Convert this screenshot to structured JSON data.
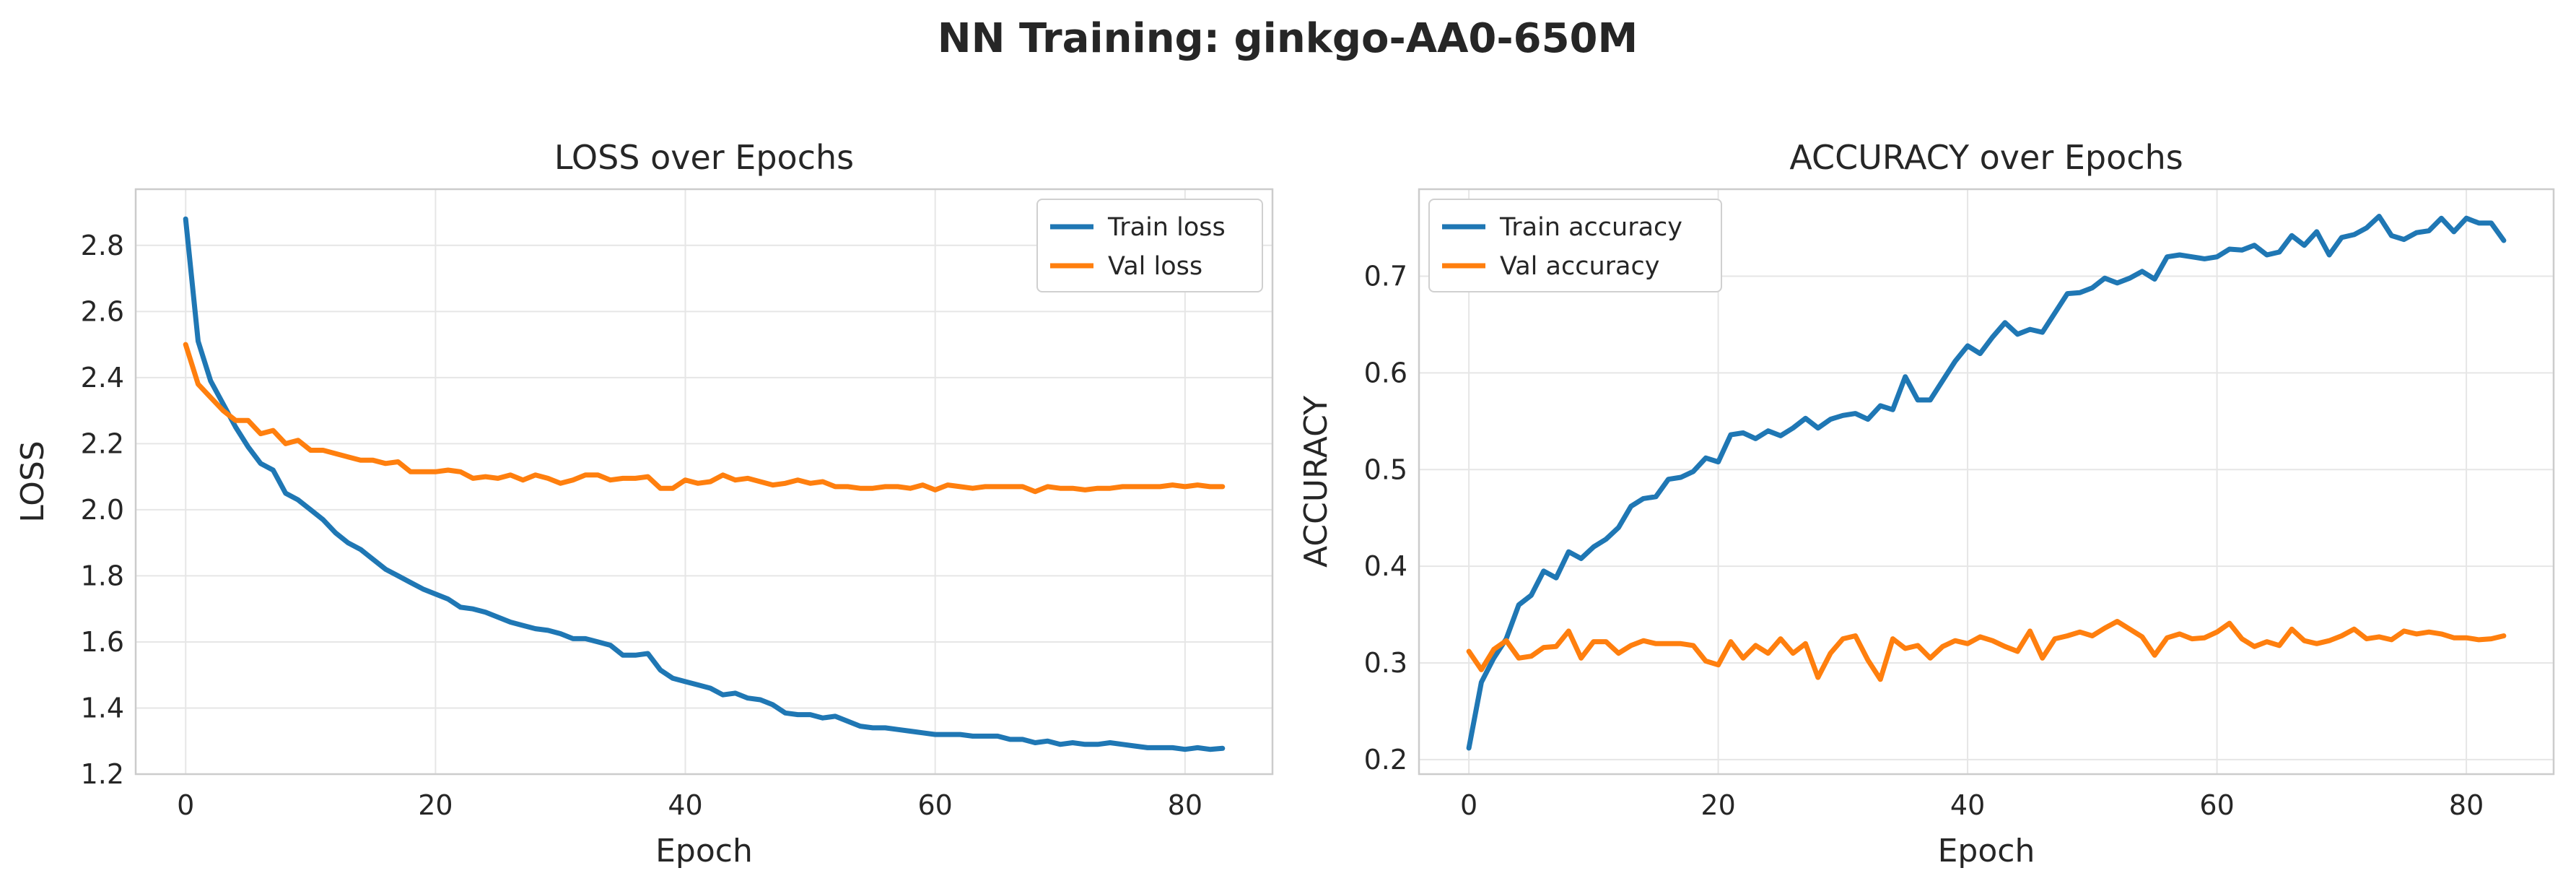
{
  "title": "NN Training: ginkgo-AA0-650M",
  "colors": {
    "train": "#1f77b4",
    "val": "#ff7f0e"
  },
  "chart_data": [
    {
      "type": "line",
      "title": "LOSS over Epochs",
      "xlabel": "Epoch",
      "ylabel": "LOSS",
      "xlim": [
        -4,
        87
      ],
      "ylim": [
        1.2,
        2.97
      ],
      "xticks": [
        0,
        20,
        40,
        60,
        80
      ],
      "yticks": [
        1.2,
        1.4,
        1.6,
        1.8,
        2.0,
        2.2,
        2.4,
        2.6,
        2.8
      ],
      "grid": true,
      "legend_position": "top-right",
      "x": [
        0,
        1,
        2,
        3,
        4,
        5,
        6,
        7,
        8,
        9,
        10,
        11,
        12,
        13,
        14,
        15,
        16,
        17,
        18,
        19,
        20,
        21,
        22,
        23,
        24,
        25,
        26,
        27,
        28,
        29,
        30,
        31,
        32,
        33,
        34,
        35,
        36,
        37,
        38,
        39,
        40,
        41,
        42,
        43,
        44,
        45,
        46,
        47,
        48,
        49,
        50,
        51,
        52,
        53,
        54,
        55,
        56,
        57,
        58,
        59,
        60,
        61,
        62,
        63,
        64,
        65,
        66,
        67,
        68,
        69,
        70,
        71,
        72,
        73,
        74,
        75,
        76,
        77,
        78,
        79,
        80,
        81,
        82,
        83
      ],
      "series": [
        {
          "name": "Train loss",
          "color": "#1f77b4",
          "values": [
            2.88,
            2.51,
            2.39,
            2.32,
            2.25,
            2.19,
            2.14,
            2.12,
            2.05,
            2.03,
            2.0,
            1.97,
            1.93,
            1.9,
            1.88,
            1.85,
            1.82,
            1.8,
            1.78,
            1.76,
            1.745,
            1.73,
            1.705,
            1.7,
            1.69,
            1.675,
            1.66,
            1.65,
            1.64,
            1.635,
            1.625,
            1.61,
            1.61,
            1.6,
            1.59,
            1.56,
            1.56,
            1.565,
            1.515,
            1.49,
            1.48,
            1.47,
            1.46,
            1.44,
            1.445,
            1.43,
            1.425,
            1.41,
            1.385,
            1.38,
            1.38,
            1.37,
            1.375,
            1.36,
            1.345,
            1.34,
            1.34,
            1.335,
            1.33,
            1.325,
            1.32,
            1.32,
            1.32,
            1.315,
            1.315,
            1.315,
            1.305,
            1.305,
            1.295,
            1.3,
            1.29,
            1.295,
            1.29,
            1.29,
            1.295,
            1.29,
            1.285,
            1.28,
            1.28,
            1.28,
            1.275,
            1.28,
            1.275,
            1.278
          ]
        },
        {
          "name": "Val loss",
          "color": "#ff7f0e",
          "values": [
            2.5,
            2.38,
            2.34,
            2.3,
            2.27,
            2.27,
            2.23,
            2.24,
            2.2,
            2.21,
            2.18,
            2.18,
            2.17,
            2.16,
            2.15,
            2.15,
            2.14,
            2.145,
            2.115,
            2.115,
            2.115,
            2.12,
            2.115,
            2.095,
            2.1,
            2.095,
            2.105,
            2.09,
            2.105,
            2.095,
            2.08,
            2.09,
            2.105,
            2.105,
            2.09,
            2.095,
            2.095,
            2.1,
            2.065,
            2.065,
            2.09,
            2.08,
            2.085,
            2.105,
            2.09,
            2.095,
            2.085,
            2.075,
            2.08,
            2.09,
            2.08,
            2.085,
            2.07,
            2.07,
            2.065,
            2.065,
            2.07,
            2.07,
            2.065,
            2.075,
            2.06,
            2.075,
            2.07,
            2.065,
            2.07,
            2.07,
            2.07,
            2.07,
            2.055,
            2.07,
            2.065,
            2.065,
            2.06,
            2.065,
            2.065,
            2.07,
            2.07,
            2.07,
            2.07,
            2.075,
            2.07,
            2.075,
            2.07,
            2.07
          ]
        }
      ]
    },
    {
      "type": "line",
      "title": "ACCURACY over Epochs",
      "xlabel": "Epoch",
      "ylabel": "ACCURACY",
      "xlim": [
        -4,
        87
      ],
      "ylim": [
        0.185,
        0.79
      ],
      "xticks": [
        0,
        20,
        40,
        60,
        80
      ],
      "yticks": [
        0.2,
        0.3,
        0.4,
        0.5,
        0.6,
        0.7
      ],
      "grid": true,
      "legend_position": "top-left",
      "x": [
        0,
        1,
        2,
        3,
        4,
        5,
        6,
        7,
        8,
        9,
        10,
        11,
        12,
        13,
        14,
        15,
        16,
        17,
        18,
        19,
        20,
        21,
        22,
        23,
        24,
        25,
        26,
        27,
        28,
        29,
        30,
        31,
        32,
        33,
        34,
        35,
        36,
        37,
        38,
        39,
        40,
        41,
        42,
        43,
        44,
        45,
        46,
        47,
        48,
        49,
        50,
        51,
        52,
        53,
        54,
        55,
        56,
        57,
        58,
        59,
        60,
        61,
        62,
        63,
        64,
        65,
        66,
        67,
        68,
        69,
        70,
        71,
        72,
        73,
        74,
        75,
        76,
        77,
        78,
        79,
        80,
        81,
        82,
        83
      ],
      "series": [
        {
          "name": "Train accuracy",
          "color": "#1f77b4",
          "values": [
            0.212,
            0.28,
            0.305,
            0.325,
            0.36,
            0.37,
            0.395,
            0.388,
            0.415,
            0.408,
            0.42,
            0.428,
            0.44,
            0.462,
            0.47,
            0.472,
            0.49,
            0.492,
            0.498,
            0.512,
            0.508,
            0.536,
            0.538,
            0.532,
            0.54,
            0.535,
            0.543,
            0.553,
            0.543,
            0.552,
            0.556,
            0.558,
            0.552,
            0.566,
            0.562,
            0.596,
            0.572,
            0.572,
            0.592,
            0.612,
            0.628,
            0.62,
            0.637,
            0.652,
            0.64,
            0.645,
            0.642,
            0.662,
            0.682,
            0.683,
            0.688,
            0.698,
            0.693,
            0.698,
            0.705,
            0.697,
            0.72,
            0.722,
            0.72,
            0.718,
            0.72,
            0.728,
            0.727,
            0.732,
            0.722,
            0.725,
            0.742,
            0.732,
            0.746,
            0.722,
            0.74,
            0.743,
            0.75,
            0.762,
            0.742,
            0.738,
            0.745,
            0.747,
            0.76,
            0.746,
            0.76,
            0.755,
            0.755,
            0.737
          ]
        },
        {
          "name": "Val accuracy",
          "color": "#ff7f0e",
          "values": [
            0.312,
            0.293,
            0.314,
            0.323,
            0.305,
            0.307,
            0.316,
            0.317,
            0.333,
            0.305,
            0.322,
            0.322,
            0.31,
            0.318,
            0.323,
            0.32,
            0.32,
            0.32,
            0.318,
            0.302,
            0.298,
            0.322,
            0.305,
            0.318,
            0.31,
            0.325,
            0.31,
            0.32,
            0.285,
            0.31,
            0.325,
            0.328,
            0.303,
            0.283,
            0.325,
            0.315,
            0.318,
            0.305,
            0.317,
            0.323,
            0.32,
            0.327,
            0.323,
            0.317,
            0.312,
            0.333,
            0.305,
            0.325,
            0.328,
            0.332,
            0.328,
            0.336,
            0.343,
            0.335,
            0.327,
            0.308,
            0.326,
            0.33,
            0.325,
            0.326,
            0.332,
            0.341,
            0.325,
            0.317,
            0.322,
            0.318,
            0.335,
            0.323,
            0.32,
            0.323,
            0.328,
            0.335,
            0.325,
            0.327,
            0.324,
            0.333,
            0.33,
            0.332,
            0.33,
            0.326,
            0.326,
            0.324,
            0.325,
            0.328
          ]
        }
      ]
    }
  ]
}
